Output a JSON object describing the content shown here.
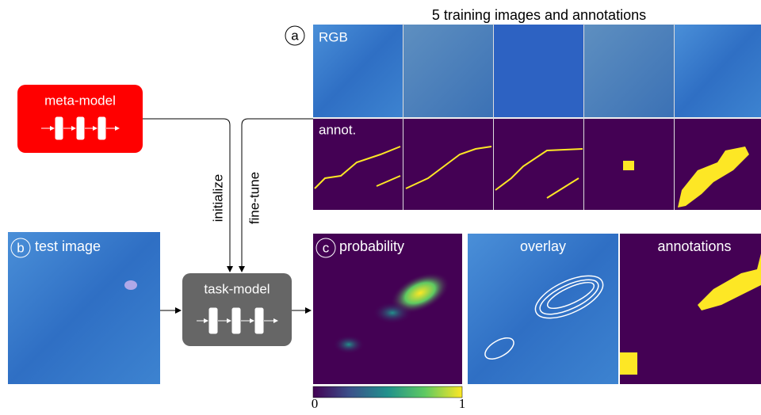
{
  "header": {
    "title": "5 training images and annotations"
  },
  "panel_a": {
    "marker": "a",
    "row_labels": [
      "RGB",
      "annot."
    ]
  },
  "meta_model": {
    "label": "meta-model"
  },
  "edges": {
    "initialize": "initialize",
    "fine_tune": "fine-tune"
  },
  "panel_b": {
    "marker": "b",
    "label": "test image"
  },
  "task_model": {
    "label": "task-model"
  },
  "panel_c": {
    "marker": "c",
    "label": "probability",
    "overlay": "overlay",
    "annotations": "annotations"
  },
  "colorbar": {
    "min_label": "0",
    "max_label": "1"
  }
}
